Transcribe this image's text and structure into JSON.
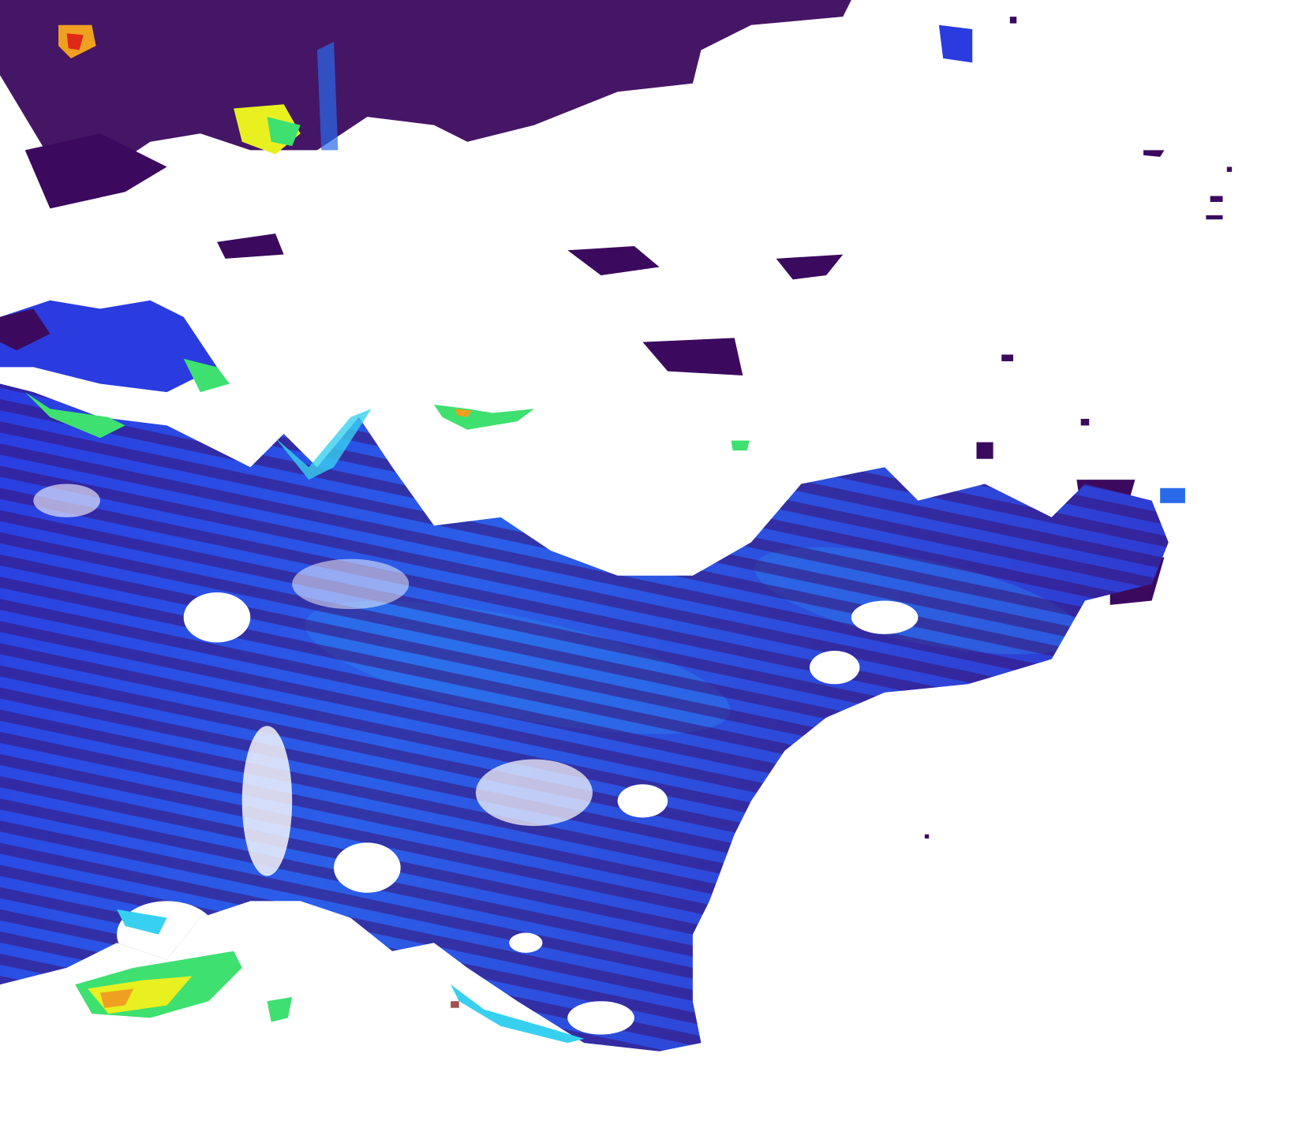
{
  "map": {
    "background": "#ffffff",
    "colormap": [
      "#3b0a5e",
      "#3a12a8",
      "#2a3be0",
      "#2a8cf0",
      "#38d0f0",
      "#3ee070",
      "#e8f020",
      "#f0a020",
      "#e02818"
    ],
    "no_data_color": "#ffffff",
    "stripe_color": "#3a0d6a",
    "deep_color": "#2f1fb8",
    "mid_color": "#2a55e8",
    "coastal_colors": [
      "#38d0f0",
      "#3ee070",
      "#e8f020",
      "#f0a020",
      "#e02818"
    ]
  }
}
